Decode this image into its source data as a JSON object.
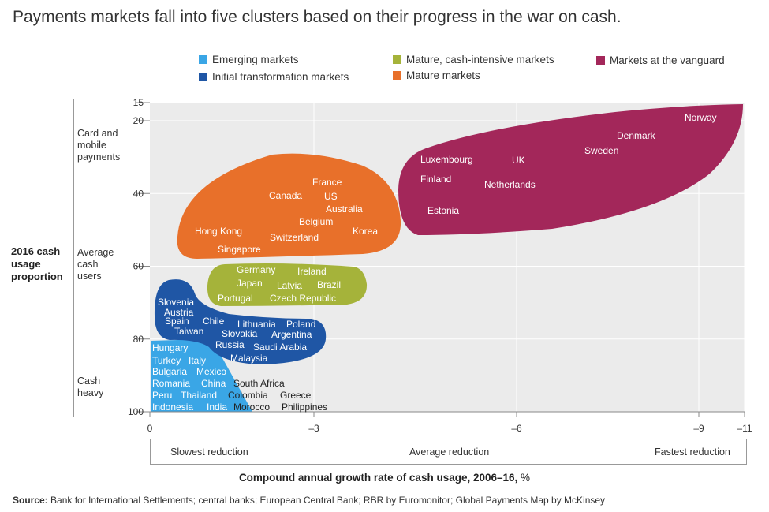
{
  "title": "Payments markets fall into five clusters based on their progress in the war on cash.",
  "legend": [
    {
      "label": "Emerging markets",
      "color": "#3aa6e6"
    },
    {
      "label": "Initial transformation markets",
      "color": "#1f56a5"
    },
    {
      "label": "Mature, cash-intensive markets",
      "color": "#a5b33a"
    },
    {
      "label": "Mature markets",
      "color": "#e8702a"
    },
    {
      "label": "Markets at the vanguard",
      "color": "#a3275a"
    }
  ],
  "y_axis": {
    "label": "2016 cash usage proportion",
    "bands": [
      "Card and mobile payments",
      "Average cash users",
      "Cash heavy"
    ]
  },
  "x_axis": {
    "descriptors": [
      "Slowest reduction",
      "Average reduction",
      "Fastest reduction"
    ],
    "title": "Compound annual growth rate of cash usage, 2006–16,",
    "unit": "%"
  },
  "source": {
    "label": "Source:",
    "text": "Bank for International Settlements; central banks; European Central Bank; RBR by Euromonitor; Global Payments Map by McKinsey"
  },
  "chart_data": {
    "type": "scatter",
    "title": "Payments markets fall into five clusters based on their progress in the war on cash.",
    "xlabel": "Compound annual growth rate of cash usage, 2006–16, %",
    "ylabel": "2016 cash usage proportion",
    "x_ticks": [
      "0",
      "–3",
      "–6",
      "–9",
      "–11"
    ],
    "y_ticks": [
      "15",
      "20",
      "40",
      "60",
      "80",
      "100"
    ],
    "ylim": [
      15,
      100
    ],
    "y_inverted": true,
    "grid": true,
    "legend_position": "top",
    "clusters": [
      {
        "name": "Emerging markets",
        "color": "#3aa6e6",
        "markets": [
          "Hungary",
          "Turkey",
          "Italy",
          "Bulgaria",
          "Mexico",
          "Romania",
          "China",
          "South Africa",
          "Peru",
          "Thailand",
          "Colombia",
          "Greece",
          "Indonesia",
          "India",
          "Morocco",
          "Philippines"
        ]
      },
      {
        "name": "Initial transformation markets",
        "color": "#1f56a5",
        "markets": [
          "Slovenia",
          "Austria",
          "Spain",
          "Chile",
          "Taiwan",
          "Lithuania",
          "Poland",
          "Slovakia",
          "Argentina",
          "Russia",
          "Saudi Arabia",
          "Malaysia"
        ]
      },
      {
        "name": "Mature, cash-intensive markets",
        "color": "#a5b33a",
        "markets": [
          "Germany",
          "Ireland",
          "Japan",
          "Latvia",
          "Brazil",
          "Portugal",
          "Czech Republic"
        ]
      },
      {
        "name": "Mature markets",
        "color": "#e8702a",
        "markets": [
          "France",
          "Canada",
          "US",
          "Australia",
          "Belgium",
          "Hong Kong",
          "Korea",
          "Switzerland",
          "Singapore"
        ]
      },
      {
        "name": "Markets at the vanguard",
        "color": "#a3275a",
        "markets": [
          "Norway",
          "Denmark",
          "Sweden",
          "Luxembourg",
          "UK",
          "Finland",
          "Netherlands",
          "Estonia"
        ]
      }
    ]
  }
}
